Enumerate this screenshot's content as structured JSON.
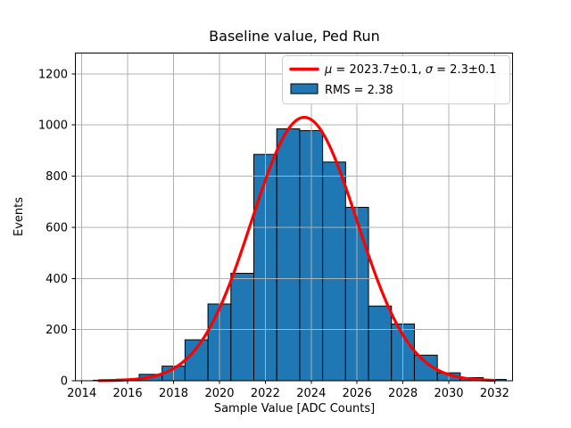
{
  "chart_data": {
    "type": "histogram",
    "title": "Baseline value, Ped Run",
    "xlabel": "Sample Value [ADC Counts]",
    "ylabel": "Events",
    "xlim": [
      2013.7,
      2032.8
    ],
    "ylim": [
      0,
      1283
    ],
    "x_ticks": [
      2014,
      2016,
      2018,
      2020,
      2022,
      2024,
      2026,
      2028,
      2030,
      2032
    ],
    "y_ticks": [
      0,
      200,
      400,
      600,
      800,
      1000,
      1200
    ],
    "grid": true,
    "bin_width": 1,
    "bin_centers": [
      2015,
      2016,
      2017,
      2018,
      2019,
      2020,
      2021,
      2022,
      2023,
      2024,
      2025,
      2026,
      2027,
      2028,
      2029,
      2030,
      2031,
      2032
    ],
    "counts": [
      2,
      6,
      25,
      57,
      160,
      300,
      420,
      885,
      985,
      978,
      855,
      678,
      292,
      222,
      100,
      31,
      12,
      5
    ],
    "fit_curve": {
      "shape": "gaussian",
      "amplitude": 1030,
      "mu": 2023.7,
      "sigma": 2.3,
      "x_start": 2014.75,
      "x_end": 2032.0
    },
    "legend": {
      "position": "upper right",
      "entries": [
        {
          "swatch": "line",
          "label": "μ = 2023.7±0.1, σ = 2.3±0.1",
          "label_parts": [
            {
              "text": "μ",
              "italic": true
            },
            {
              "text": " = 2023.7±0.1, ",
              "italic": false
            },
            {
              "text": "σ",
              "italic": true
            },
            {
              "text": " = 2.3±0.1",
              "italic": false
            }
          ]
        },
        {
          "swatch": "patch",
          "label": "RMS = 2.38"
        }
      ]
    },
    "colors": {
      "bar_fill": "#1f77b4",
      "bar_edge": "#000000",
      "curve": "#ff0000",
      "grid": "#b0b0b0",
      "background": "#ffffff",
      "text": "#000000",
      "legend_border": "#cccccc",
      "legend_bg": "#ffffff"
    }
  }
}
